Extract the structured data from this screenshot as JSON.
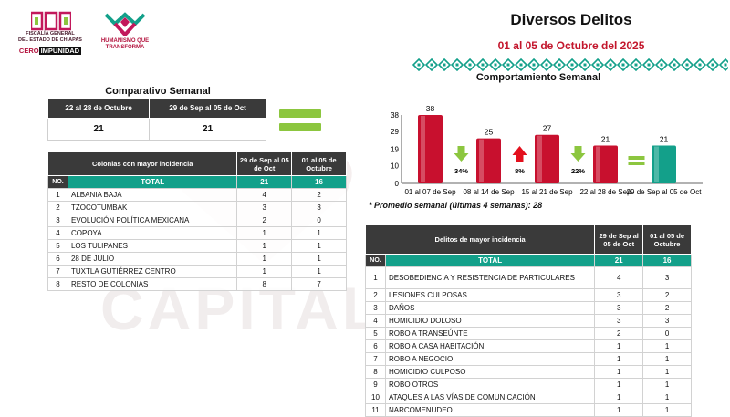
{
  "header": {
    "logo1_line1": "FISCALÍA GENERAL",
    "logo1_line2": "DEL ESTADO DE CHIAPAS",
    "logo1_cero": "CERO",
    "logo1_impunidad": "IMPUNIDAD",
    "logo2_text": "HUMANISMO QUE TRANSFORMA",
    "title": "Diversos Delitos",
    "date_range": "01 al 05 de Octubre del 2025"
  },
  "watermark": "CAPITAL",
  "weekly": {
    "title": "Comparativo Semanal",
    "columns": [
      "22 al 28 de Octubre",
      "29 de Sep al 05 de Oct"
    ],
    "values": [
      "21",
      "21"
    ]
  },
  "colonias": {
    "header": "Colonias  con mayor incidencia",
    "col1": "29 de Sep al 05 de Oct",
    "col2": "01 al 05 de Octubre",
    "no_label": "NO.",
    "total_label": "TOTAL",
    "total1": "21",
    "total2": "16",
    "rows": [
      {
        "no": "1",
        "name": "ALBANIA BAJA",
        "a": "4",
        "b": "2"
      },
      {
        "no": "2",
        "name": "TZOCOTUMBAK",
        "a": "3",
        "b": "3"
      },
      {
        "no": "3",
        "name": "EVOLUCIÓN POLÍTICA MEXICANA",
        "a": "2",
        "b": "0"
      },
      {
        "no": "4",
        "name": "COPOYA",
        "a": "1",
        "b": "1"
      },
      {
        "no": "5",
        "name": "LOS TULIPANES",
        "a": "1",
        "b": "1"
      },
      {
        "no": "6",
        "name": "28 DE JULIO",
        "a": "1",
        "b": "1"
      },
      {
        "no": "7",
        "name": "TUXTLA GUTIÉRREZ CENTRO",
        "a": "1",
        "b": "1"
      },
      {
        "no": "8",
        "name": "RESTO DE COLONIAS",
        "a": "8",
        "b": "7"
      }
    ]
  },
  "chart_data": {
    "type": "bar",
    "title": "Comportamiento Semanal",
    "categories": [
      "01 al 07 de Sep",
      "08 al 14 de Sep",
      "15 al 21 de Sep",
      "22 al 28 de Sep",
      "29 de Sep al 05 de Oct"
    ],
    "values": [
      38,
      25,
      27,
      21,
      21
    ],
    "yticks": [
      "0",
      "10",
      "19",
      "29",
      "38"
    ],
    "ylim": [
      0,
      38
    ],
    "bar_colors": [
      "#c8102e",
      "#c8102e",
      "#c8102e",
      "#c8102e",
      "#13a08a"
    ],
    "changes": [
      {
        "label": "34%",
        "direction": "down",
        "color": "#8cc63f"
      },
      {
        "label": "8%",
        "direction": "up",
        "color": "#e3101d"
      },
      {
        "label": "22%",
        "direction": "down",
        "color": "#8cc63f"
      },
      {
        "label": "",
        "direction": "equal",
        "color": "#8cc63f"
      }
    ]
  },
  "avg_note": "* Promedio semanal (últimas 4 semanas): 28",
  "delitos": {
    "header": "Delitos de mayor incidencia",
    "col1": "29 de Sep al 05 de Oct",
    "col2": "01 al 05 de Octubre",
    "no_label": "NO.",
    "total_label": "TOTAL",
    "total1": "21",
    "total2": "16",
    "rows": [
      {
        "no": "1",
        "name": "DESOBEDIENCIA Y RESISTENCIA DE PARTICULARES",
        "a": "4",
        "b": "3"
      },
      {
        "no": "2",
        "name": "LESIONES CULPOSAS",
        "a": "3",
        "b": "2"
      },
      {
        "no": "3",
        "name": "DAÑOS",
        "a": "3",
        "b": "2"
      },
      {
        "no": "4",
        "name": "HOMICIDIO DOLOSO",
        "a": "3",
        "b": "3"
      },
      {
        "no": "5",
        "name": "ROBO A TRANSEÚNTE",
        "a": "2",
        "b": "0"
      },
      {
        "no": "6",
        "name": "ROBO A CASA HABITACIÓN",
        "a": "1",
        "b": "1"
      },
      {
        "no": "7",
        "name": "ROBO A NEGOCIO",
        "a": "1",
        "b": "1"
      },
      {
        "no": "8",
        "name": "HOMICIDIO CULPOSO",
        "a": "1",
        "b": "1"
      },
      {
        "no": "9",
        "name": "ROBO OTROS",
        "a": "1",
        "b": "1"
      },
      {
        "no": "10",
        "name": "ATAQUES A LAS VÍAS DE COMUNICACIÓN",
        "a": "1",
        "b": "1"
      },
      {
        "no": "11",
        "name": "NARCOMENUDEO",
        "a": "1",
        "b": "1"
      }
    ]
  }
}
